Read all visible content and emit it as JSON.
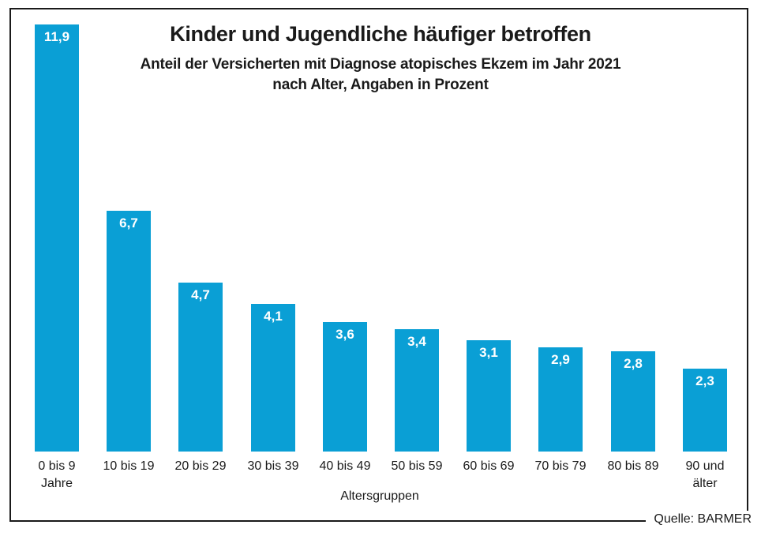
{
  "title": "Kinder und Jugendliche häufiger betroffen",
  "subtitle_line1": "Anteil der Versicherten mit Diagnose atopisches Ekzem im Jahr 2021",
  "subtitle_line2": "nach Alter, Angaben in Prozent",
  "source": "Quelle: BARMER",
  "colors": {
    "bar": "#0a9fd5",
    "text": "#1a1a1a",
    "value_label": "#ffffff",
    "frame_border": "#1a1a1a"
  },
  "chart_data": {
    "type": "bar",
    "title": "Kinder und Jugendliche häufiger betroffen",
    "subtitle": "Anteil der Versicherten mit Diagnose atopisches Ekzem im Jahr 2021 nach Alter, Angaben in Prozent",
    "categories": [
      "0 bis 9 Jahre",
      "10 bis 19",
      "20 bis 29",
      "30 bis 39",
      "40 bis 49",
      "50 bis 59",
      "60 bis 69",
      "70 bis 79",
      "80 bis 89",
      "90 und älter"
    ],
    "categories_lines": [
      [
        "0 bis 9",
        "Jahre"
      ],
      [
        "10 bis 19"
      ],
      [
        "20 bis 29"
      ],
      [
        "30 bis 39"
      ],
      [
        "40 bis 49"
      ],
      [
        "50 bis 59"
      ],
      [
        "60 bis 69"
      ],
      [
        "70 bis 79"
      ],
      [
        "80 bis 89"
      ],
      [
        "90 und",
        "älter"
      ]
    ],
    "values": [
      11.9,
      6.7,
      4.7,
      4.1,
      3.6,
      3.4,
      3.1,
      2.9,
      2.8,
      2.3
    ],
    "value_labels": [
      "11,9",
      "6,7",
      "4,7",
      "4,1",
      "3,6",
      "3,4",
      "3,1",
      "2,9",
      "2,8",
      "2,3"
    ],
    "xlabel": "Altersgruppen",
    "ylabel": "",
    "unit": "Prozent",
    "ylim": [
      0,
      12
    ],
    "grid": false,
    "legend_position": "none",
    "bar_color": "#0a9fd5",
    "value_label_color": "#ffffff"
  }
}
